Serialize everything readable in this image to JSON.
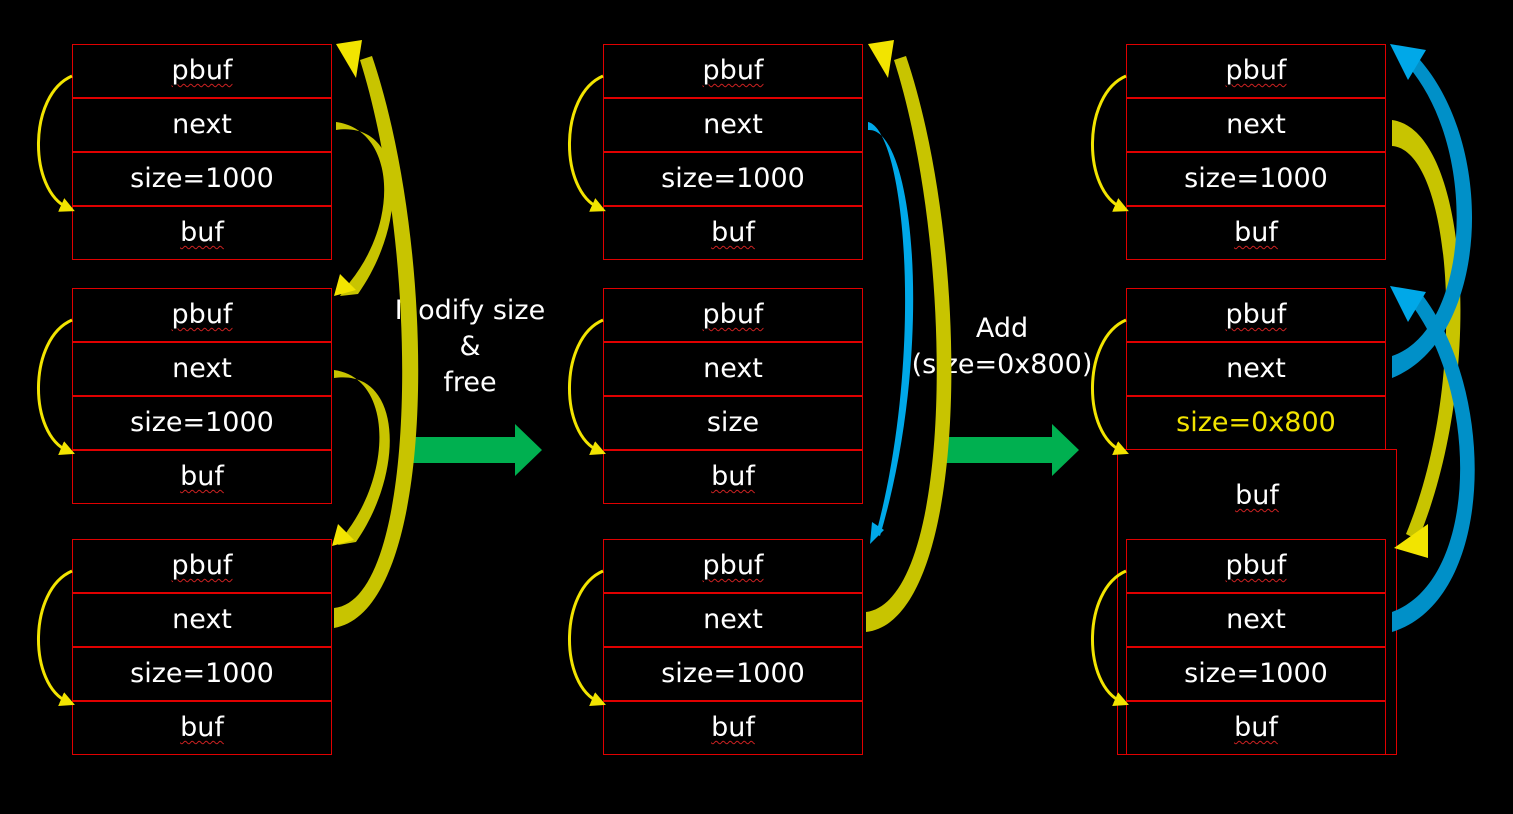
{
  "stage1": {
    "blocks": [
      {
        "pbuf": "pbuf",
        "next": "next",
        "size": "size=1000",
        "buf": "buf"
      },
      {
        "pbuf": "pbuf",
        "next": "next",
        "size": "size=1000",
        "buf": "buf"
      },
      {
        "pbuf": "pbuf",
        "next": "next",
        "size": "size=1000",
        "buf": "buf"
      }
    ]
  },
  "stage2": {
    "blocks": [
      {
        "pbuf": "pbuf",
        "next": "next",
        "size": "size=1000",
        "buf": "buf"
      },
      {
        "pbuf": "pbuf",
        "next": "next",
        "size": "size",
        "buf": "buf"
      },
      {
        "pbuf": "pbuf",
        "next": "next",
        "size": "size=1000",
        "buf": "buf"
      }
    ]
  },
  "stage3": {
    "blocks": [
      {
        "pbuf": "pbuf",
        "next": "next",
        "size": "size=1000",
        "buf": "buf"
      },
      {
        "pbuf": "pbuf",
        "next": "next",
        "size": "size=0x800",
        "buf": "buf"
      },
      {
        "pbuf": "pbuf",
        "next": "next",
        "size": "size=1000",
        "buf": "buf"
      }
    ]
  },
  "transitions": {
    "first": {
      "line1": "Modify size",
      "line2": "&",
      "line3": "free"
    },
    "second": {
      "line1": "Add",
      "line2": "(size=0x800)"
    }
  },
  "colors": {
    "border": "#e00000",
    "yellow_arrow": "#f2e400",
    "olive_arrow": "#c8c400",
    "blue_arrow": "#00a8e8",
    "dark_blue_arrow": "#0090c8",
    "green_arrow": "#00b050",
    "highlight_text": "#f2e400"
  }
}
